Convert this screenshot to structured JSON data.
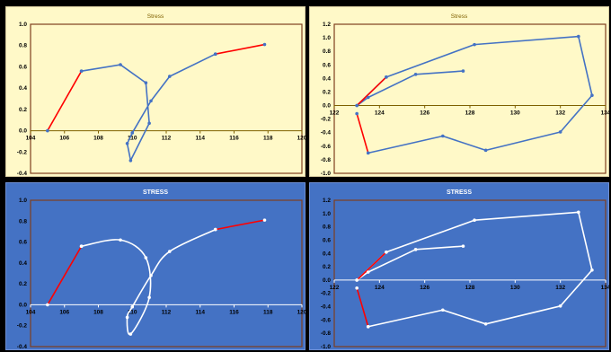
{
  "theme": {
    "light": {
      "bg": "#fff9c8",
      "title": "#7f6000",
      "tick": "#000000",
      "axis": "#7f6000",
      "border": "#d7cba0",
      "frame": "#7f3f1f",
      "series": "#4472c4",
      "highlight": "#ff0000",
      "marker": "#4472c4"
    },
    "dark": {
      "bg": "#4472c4",
      "title": "#ffffff",
      "tick": "#000000",
      "axis": "#ffffff",
      "border": "#6f90d4",
      "frame": "#7f3f1f",
      "series": "#ffffff",
      "highlight": "#ff0000",
      "marker": "#ffffff"
    }
  },
  "chart_data": [
    {
      "type": "scatter",
      "theme": "light",
      "smooth": false,
      "title": "Stress",
      "xlim": [
        104,
        120
      ],
      "xticks": [
        104,
        106,
        108,
        110,
        112,
        114,
        116,
        118,
        120
      ],
      "ylim": [
        -0.4,
        1.0
      ],
      "yticks": [
        -0.4,
        -0.2,
        0.0,
        0.2,
        0.4,
        0.6,
        0.8,
        1.0
      ],
      "tick_decimals": 1,
      "series": [
        {
          "role": "main",
          "x": [
            107.0,
            109.3,
            110.8,
            111.0,
            109.9,
            109.7,
            110.0,
            111.1,
            112.2,
            114.9
          ],
          "y": [
            0.56,
            0.62,
            0.45,
            0.07,
            -0.28,
            -0.12,
            -0.02,
            0.28,
            0.51,
            0.72
          ]
        },
        {
          "role": "red-start",
          "x": [
            105.0,
            107.0
          ],
          "y": [
            0.0,
            0.56
          ]
        },
        {
          "role": "red-end",
          "x": [
            114.9,
            117.8
          ],
          "y": [
            0.72,
            0.81
          ]
        }
      ]
    },
    {
      "type": "scatter",
      "theme": "light",
      "smooth": false,
      "title": "Stress",
      "xlim": [
        122,
        134
      ],
      "xticks": [
        122,
        124,
        126,
        128,
        130,
        132,
        134
      ],
      "ylim": [
        -1.0,
        1.2
      ],
      "yticks": [
        -1.0,
        -0.8,
        -0.6,
        -0.4,
        -0.2,
        0.0,
        0.2,
        0.4,
        0.6,
        0.8,
        1.0,
        1.2
      ],
      "tick_decimals": 1,
      "series": [
        {
          "role": "main",
          "x": [
            127.7,
            125.6,
            123.5,
            123.0,
            124.3,
            128.2,
            132.8,
            133.4,
            132.0,
            128.7,
            126.8,
            123.5
          ],
          "y": [
            0.51,
            0.46,
            0.12,
            0.0,
            0.42,
            0.9,
            1.02,
            0.15,
            -0.39,
            -0.66,
            -0.45,
            -0.7
          ]
        },
        {
          "role": "red-start",
          "x": [
            123.0,
            124.3
          ],
          "y": [
            0.0,
            0.42
          ]
        },
        {
          "role": "red-end",
          "x": [
            123.5,
            123.0
          ],
          "y": [
            -0.7,
            -0.12
          ]
        }
      ]
    },
    {
      "type": "scatter",
      "theme": "dark",
      "smooth": true,
      "title": "STRESS",
      "xlim": [
        104,
        120
      ],
      "xticks": [
        104,
        106,
        108,
        110,
        112,
        114,
        116,
        118,
        120
      ],
      "ylim": [
        -0.4,
        1.0
      ],
      "yticks": [
        -0.4,
        -0.2,
        0.0,
        0.2,
        0.4,
        0.6,
        0.8,
        1.0
      ],
      "tick_decimals": 1,
      "series": [
        {
          "role": "main",
          "x": [
            107.0,
            109.3,
            110.8,
            111.0,
            109.9,
            109.7,
            110.0,
            111.1,
            112.2,
            114.9
          ],
          "y": [
            0.56,
            0.62,
            0.45,
            0.07,
            -0.28,
            -0.12,
            -0.02,
            0.28,
            0.51,
            0.72
          ]
        },
        {
          "role": "red-start",
          "x": [
            105.0,
            107.0
          ],
          "y": [
            0.0,
            0.56
          ]
        },
        {
          "role": "red-end",
          "x": [
            114.9,
            117.8
          ],
          "y": [
            0.72,
            0.81
          ]
        }
      ]
    },
    {
      "type": "scatter",
      "theme": "dark",
      "smooth": false,
      "title": "STRESS",
      "xlim": [
        122,
        134
      ],
      "xticks": [
        122,
        124,
        126,
        128,
        130,
        132,
        134
      ],
      "ylim": [
        -1.0,
        1.2
      ],
      "yticks": [
        -1.0,
        -0.8,
        -0.6,
        -0.4,
        -0.2,
        0.0,
        0.2,
        0.4,
        0.6,
        0.8,
        1.0,
        1.2
      ],
      "tick_decimals": 1,
      "series": [
        {
          "role": "main",
          "x": [
            127.7,
            125.6,
            123.5,
            123.0,
            124.3,
            128.2,
            132.8,
            133.4,
            132.0,
            128.7,
            126.8,
            123.5
          ],
          "y": [
            0.51,
            0.46,
            0.12,
            0.0,
            0.42,
            0.9,
            1.02,
            0.15,
            -0.39,
            -0.66,
            -0.45,
            -0.7
          ]
        },
        {
          "role": "red-start",
          "x": [
            123.0,
            124.3
          ],
          "y": [
            0.0,
            0.42
          ]
        },
        {
          "role": "red-end",
          "x": [
            123.5,
            123.0
          ],
          "y": [
            -0.7,
            -0.12
          ]
        }
      ]
    }
  ]
}
